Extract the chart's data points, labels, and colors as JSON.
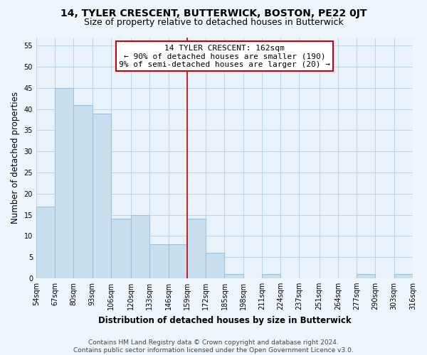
{
  "title": "14, TYLER CRESCENT, BUTTERWICK, BOSTON, PE22 0JT",
  "subtitle": "Size of property relative to detached houses in Butterwick",
  "xlabel": "Distribution of detached houses by size in Butterwick",
  "ylabel": "Number of detached properties",
  "bar_edges": [
    54,
    67,
    80,
    93,
    106,
    120,
    133,
    146,
    159,
    172,
    185,
    198,
    211,
    224,
    237,
    251,
    264,
    277,
    290,
    303,
    316
  ],
  "bar_heights": [
    17,
    45,
    41,
    39,
    14,
    15,
    8,
    8,
    14,
    6,
    1,
    0,
    1,
    0,
    0,
    0,
    0,
    1,
    0,
    1
  ],
  "bar_facecolor": "#c8dff0",
  "bar_edgecolor": "#a0bfd8",
  "property_line_x": 159,
  "property_line_color": "#cc0000",
  "annotation_title": "14 TYLER CRESCENT: 162sqm",
  "annotation_line1": "← 90% of detached houses are smaller (190)",
  "annotation_line2": "9% of semi-detached houses are larger (20) →",
  "annotation_box_edgecolor": "#cc0000",
  "annotation_box_facecolor": "#ffffff",
  "ylim": [
    0,
    57
  ],
  "yticks": [
    0,
    5,
    10,
    15,
    20,
    25,
    30,
    35,
    40,
    45,
    50,
    55
  ],
  "footer_line1": "Contains HM Land Registry data © Crown copyright and database right 2024.",
  "footer_line2": "Contains public sector information licensed under the Open Government Licence v3.0.",
  "bg_color": "#eef5fb",
  "plot_bg_color": "#e8f2f8",
  "grid_color": "#b8cfe0",
  "title_fontsize": 10,
  "subtitle_fontsize": 9,
  "axis_label_fontsize": 8.5,
  "tick_fontsize": 7,
  "footer_fontsize": 6.5,
  "annot_fontsize": 8
}
